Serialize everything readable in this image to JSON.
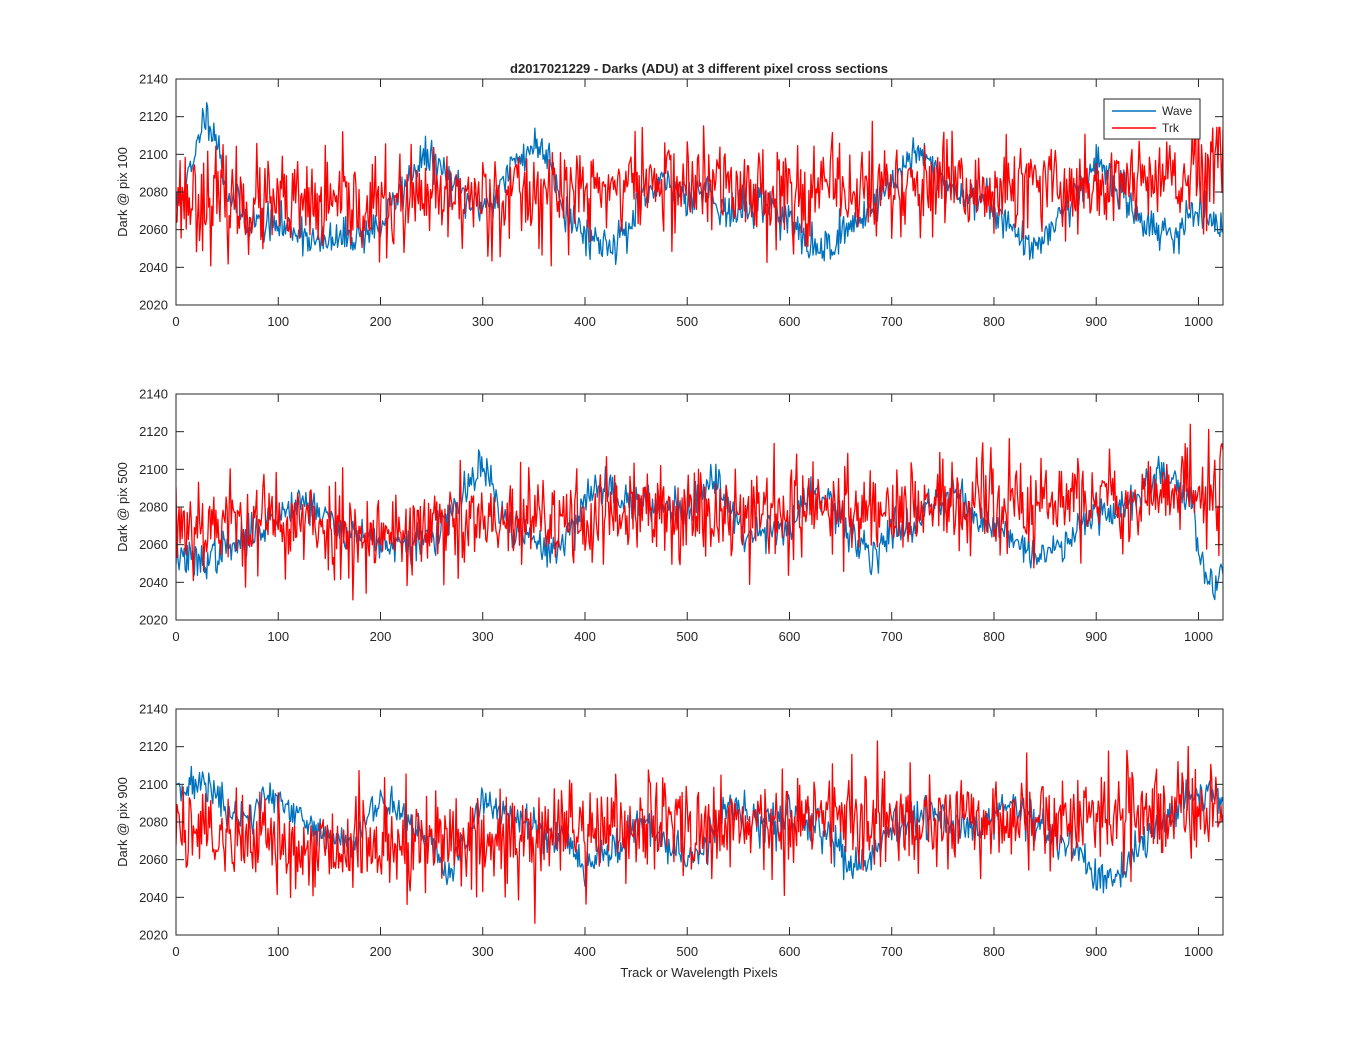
{
  "figure": {
    "title": "d2017021229 - Darks (ADU) at 3 different pixel cross sections",
    "xlabel": "Track or Wavelength Pixels",
    "colors": {
      "wave": "#0072BD",
      "trk": "#FF0000",
      "axes": "#262626",
      "background": "#ffffff"
    }
  },
  "chart_data": [
    {
      "type": "line",
      "ylabel": "Dark @ pix 100",
      "xlim": [
        0,
        1024
      ],
      "ylim": [
        2020,
        2140
      ],
      "xticks": [
        0,
        100,
        200,
        300,
        400,
        500,
        600,
        700,
        800,
        900,
        1000
      ],
      "yticks": [
        2020,
        2040,
        2060,
        2080,
        2100,
        2120,
        2140
      ],
      "grid": false,
      "legend": {
        "placement": "top-right",
        "entries": [
          "Wave",
          "Trk"
        ]
      },
      "series": [
        {
          "name": "Wave",
          "color": "#0072BD",
          "noise": 5,
          "seed": 11,
          "anchors": [
            [
              0,
              2072
            ],
            [
              10,
              2085
            ],
            [
              18,
              2095
            ],
            [
              25,
              2118
            ],
            [
              32,
              2120
            ],
            [
              40,
              2108
            ],
            [
              50,
              2080
            ],
            [
              70,
              2065
            ],
            [
              100,
              2062
            ],
            [
              120,
              2060
            ],
            [
              140,
              2052
            ],
            [
              160,
              2055
            ],
            [
              180,
              2058
            ],
            [
              200,
              2062
            ],
            [
              220,
              2080
            ],
            [
              240,
              2098
            ],
            [
              255,
              2095
            ],
            [
              270,
              2085
            ],
            [
              290,
              2072
            ],
            [
              310,
              2075
            ],
            [
              330,
              2095
            ],
            [
              350,
              2105
            ],
            [
              365,
              2100
            ],
            [
              380,
              2070
            ],
            [
              400,
              2058
            ],
            [
              420,
              2052
            ],
            [
              440,
              2058
            ],
            [
              460,
              2078
            ],
            [
              480,
              2085
            ],
            [
              500,
              2078
            ],
            [
              520,
              2082
            ],
            [
              540,
              2068
            ],
            [
              560,
              2072
            ],
            [
              580,
              2075
            ],
            [
              600,
              2065
            ],
            [
              620,
              2050
            ],
            [
              640,
              2052
            ],
            [
              660,
              2062
            ],
            [
              680,
              2072
            ],
            [
              700,
              2085
            ],
            [
              720,
              2100
            ],
            [
              740,
              2095
            ],
            [
              760,
              2080
            ],
            [
              780,
              2078
            ],
            [
              800,
              2072
            ],
            [
              820,
              2060
            ],
            [
              835,
              2048
            ],
            [
              850,
              2058
            ],
            [
              870,
              2072
            ],
            [
              890,
              2085
            ],
            [
              900,
              2098
            ],
            [
              920,
              2082
            ],
            [
              940,
              2068
            ],
            [
              960,
              2060
            ],
            [
              980,
              2058
            ],
            [
              1000,
              2072
            ],
            [
              1010,
              2062
            ],
            [
              1024,
              2060
            ]
          ]
        },
        {
          "name": "Trk",
          "color": "#FF0000",
          "noise": 13,
          "seed": 23,
          "anchors": [
            [
              0,
              2078
            ],
            [
              100,
              2072
            ],
            [
              200,
              2072
            ],
            [
              300,
              2078
            ],
            [
              400,
              2080
            ],
            [
              450,
              2085
            ],
            [
              500,
              2084
            ],
            [
              600,
              2080
            ],
            [
              700,
              2082
            ],
            [
              800,
              2080
            ],
            [
              900,
              2084
            ],
            [
              1000,
              2087
            ],
            [
              1024,
              2095
            ]
          ]
        }
      ]
    },
    {
      "type": "line",
      "ylabel": "Dark @ pix 500",
      "xlim": [
        0,
        1024
      ],
      "ylim": [
        2020,
        2140
      ],
      "xticks": [
        0,
        100,
        200,
        300,
        400,
        500,
        600,
        700,
        800,
        900,
        1000
      ],
      "yticks": [
        2020,
        2040,
        2060,
        2080,
        2100,
        2120,
        2140
      ],
      "grid": false,
      "series": [
        {
          "name": "Wave",
          "color": "#0072BD",
          "noise": 5,
          "seed": 37,
          "anchors": [
            [
              0,
              2055
            ],
            [
              20,
              2050
            ],
            [
              40,
              2055
            ],
            [
              60,
              2060
            ],
            [
              80,
              2068
            ],
            [
              100,
              2075
            ],
            [
              120,
              2085
            ],
            [
              140,
              2078
            ],
            [
              160,
              2068
            ],
            [
              180,
              2065
            ],
            [
              200,
              2062
            ],
            [
              220,
              2058
            ],
            [
              240,
              2062
            ],
            [
              260,
              2068
            ],
            [
              280,
              2085
            ],
            [
              295,
              2100
            ],
            [
              305,
              2098
            ],
            [
              320,
              2072
            ],
            [
              340,
              2065
            ],
            [
              360,
              2058
            ],
            [
              380,
              2060
            ],
            [
              400,
              2085
            ],
            [
              420,
              2092
            ],
            [
              440,
              2085
            ],
            [
              460,
              2080
            ],
            [
              480,
              2082
            ],
            [
              500,
              2078
            ],
            [
              520,
              2092
            ],
            [
              530,
              2098
            ],
            [
              545,
              2075
            ],
            [
              560,
              2065
            ],
            [
              580,
              2070
            ],
            [
              600,
              2068
            ],
            [
              620,
              2088
            ],
            [
              640,
              2080
            ],
            [
              660,
              2065
            ],
            [
              680,
              2055
            ],
            [
              700,
              2068
            ],
            [
              720,
              2072
            ],
            [
              740,
              2080
            ],
            [
              760,
              2090
            ],
            [
              780,
              2075
            ],
            [
              800,
              2070
            ],
            [
              820,
              2065
            ],
            [
              840,
              2052
            ],
            [
              860,
              2058
            ],
            [
              880,
              2068
            ],
            [
              900,
              2080
            ],
            [
              920,
              2078
            ],
            [
              940,
              2085
            ],
            [
              960,
              2098
            ],
            [
              980,
              2092
            ],
            [
              995,
              2080
            ],
            [
              1005,
              2045
            ],
            [
              1015,
              2038
            ],
            [
              1024,
              2052
            ]
          ]
        },
        {
          "name": "Trk",
          "color": "#FF0000",
          "noise": 13,
          "seed": 53,
          "anchors": [
            [
              0,
              2072
            ],
            [
              100,
              2072
            ],
            [
              200,
              2066
            ],
            [
              300,
              2070
            ],
            [
              400,
              2074
            ],
            [
              500,
              2078
            ],
            [
              600,
              2078
            ],
            [
              700,
              2080
            ],
            [
              800,
              2080
            ],
            [
              900,
              2084
            ],
            [
              1000,
              2088
            ],
            [
              1024,
              2092
            ]
          ]
        }
      ]
    },
    {
      "type": "line",
      "ylabel": "Dark @ pix 900",
      "xlim": [
        0,
        1024
      ],
      "ylim": [
        2020,
        2140
      ],
      "xticks": [
        0,
        100,
        200,
        300,
        400,
        500,
        600,
        700,
        800,
        900,
        1000
      ],
      "yticks": [
        2020,
        2040,
        2060,
        2080,
        2100,
        2120,
        2140
      ],
      "grid": false,
      "series": [
        {
          "name": "Wave",
          "color": "#0072BD",
          "noise": 5,
          "seed": 71,
          "anchors": [
            [
              0,
              2102
            ],
            [
              15,
              2098
            ],
            [
              30,
              2102
            ],
            [
              50,
              2085
            ],
            [
              70,
              2080
            ],
            [
              90,
              2095
            ],
            [
              110,
              2085
            ],
            [
              130,
              2078
            ],
            [
              150,
              2072
            ],
            [
              170,
              2068
            ],
            [
              190,
              2085
            ],
            [
              210,
              2092
            ],
            [
              230,
              2078
            ],
            [
              250,
              2068
            ],
            [
              265,
              2052
            ],
            [
              280,
              2065
            ],
            [
              300,
              2092
            ],
            [
              320,
              2085
            ],
            [
              340,
              2080
            ],
            [
              360,
              2075
            ],
            [
              380,
              2072
            ],
            [
              400,
              2058
            ],
            [
              420,
              2062
            ],
            [
              440,
              2072
            ],
            [
              460,
              2080
            ],
            [
              480,
              2068
            ],
            [
              500,
              2060
            ],
            [
              520,
              2070
            ],
            [
              540,
              2088
            ],
            [
              560,
              2082
            ],
            [
              580,
              2078
            ],
            [
              600,
              2085
            ],
            [
              620,
              2080
            ],
            [
              640,
              2072
            ],
            [
              660,
              2055
            ],
            [
              680,
              2060
            ],
            [
              700,
              2075
            ],
            [
              720,
              2080
            ],
            [
              740,
              2085
            ],
            [
              760,
              2078
            ],
            [
              780,
              2075
            ],
            [
              800,
              2085
            ],
            [
              820,
              2090
            ],
            [
              840,
              2078
            ],
            [
              860,
              2072
            ],
            [
              880,
              2065
            ],
            [
              900,
              2052
            ],
            [
              915,
              2048
            ],
            [
              930,
              2055
            ],
            [
              950,
              2072
            ],
            [
              970,
              2082
            ],
            [
              990,
              2092
            ],
            [
              1010,
              2098
            ],
            [
              1024,
              2090
            ]
          ]
        },
        {
          "name": "Trk",
          "color": "#FF0000",
          "noise": 13,
          "seed": 89,
          "anchors": [
            [
              0,
              2080
            ],
            [
              100,
              2068
            ],
            [
              200,
              2068
            ],
            [
              300,
              2070
            ],
            [
              400,
              2076
            ],
            [
              500,
              2078
            ],
            [
              600,
              2080
            ],
            [
              700,
              2082
            ],
            [
              800,
              2080
            ],
            [
              900,
              2082
            ],
            [
              1000,
              2088
            ],
            [
              1024,
              2090
            ]
          ]
        }
      ]
    }
  ]
}
